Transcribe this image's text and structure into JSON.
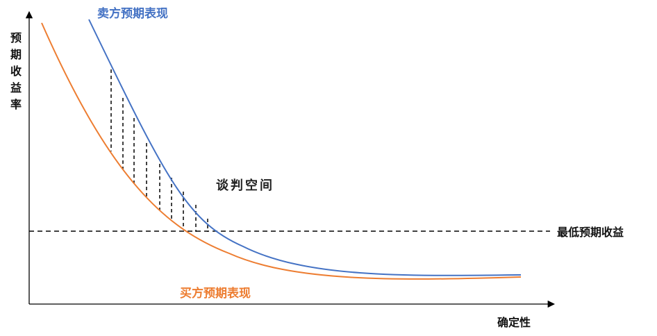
{
  "y_axis_label": [
    "预",
    "期",
    "收",
    "益",
    "率"
  ],
  "x_axis_label": "确定性",
  "seller_curve_label": "卖方预期表现",
  "buyer_curve_label": "买方预期表现",
  "negotiation_zone_label": "谈判空间",
  "min_return_label": "最低预期收益",
  "colors": {
    "seller": "#4472c4",
    "buyer": "#ed7d31",
    "axis": "#000000",
    "reference": "#000000"
  }
}
